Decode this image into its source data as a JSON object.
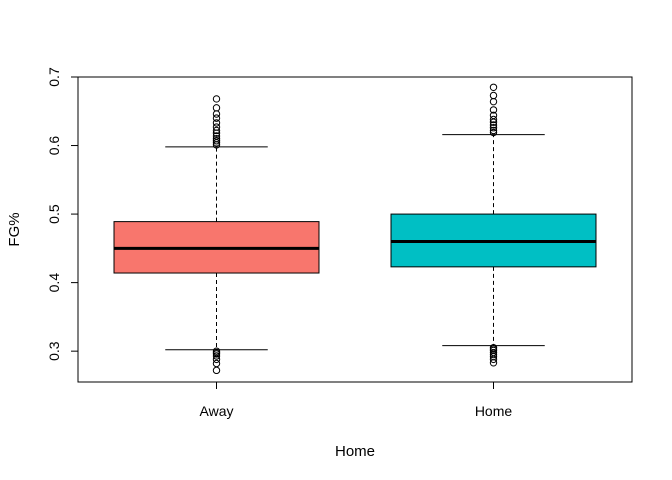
{
  "chart_data": {
    "type": "boxplot",
    "title": "",
    "xlabel": "Home",
    "ylabel": "FG%",
    "ylim": [
      0.255,
      0.7
    ],
    "yticks": [
      0.3,
      0.4,
      0.5,
      0.6,
      0.7
    ],
    "ytick_labels": [
      "0.3",
      "0.4",
      "0.5",
      "0.6",
      "0.7"
    ],
    "grid": false,
    "legend": "none",
    "categories": [
      "Away",
      "Home"
    ],
    "boxes": [
      {
        "name": "Away",
        "color": "#F8766D",
        "whisker_low": 0.302,
        "q1": 0.414,
        "median": 0.45,
        "q3": 0.489,
        "whisker_high": 0.598,
        "outliers": [
          0.272,
          0.282,
          0.288,
          0.293,
          0.296,
          0.298,
          0.3,
          0.601,
          0.604,
          0.607,
          0.61,
          0.614,
          0.618,
          0.622,
          0.627,
          0.633,
          0.64,
          0.646,
          0.655,
          0.668
        ]
      },
      {
        "name": "Home",
        "color": "#00BFC4",
        "whisker_low": 0.308,
        "q1": 0.423,
        "median": 0.46,
        "q3": 0.5,
        "whisker_high": 0.616,
        "outliers": [
          0.283,
          0.288,
          0.292,
          0.295,
          0.298,
          0.301,
          0.303,
          0.305,
          0.619,
          0.622,
          0.626,
          0.63,
          0.634,
          0.638,
          0.644,
          0.652,
          0.664,
          0.673,
          0.685
        ]
      }
    ]
  }
}
